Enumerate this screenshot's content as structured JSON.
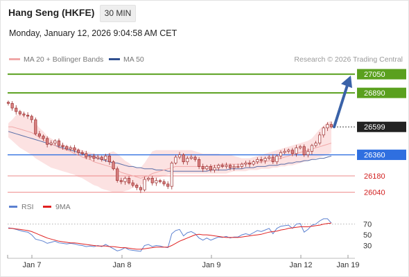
{
  "header": {
    "title": "Hang Seng (HKFE)",
    "timeframe": "30 MIN",
    "datetime": "Monday, January 12, 2026 9:04:58 AM CET"
  },
  "legend": {
    "ma20_label": "MA 20 + Bollinger Bands",
    "ma50_label": "MA 50",
    "credit": "Research © 2026 Trading Central"
  },
  "indicator_legend": {
    "rsi_label": "RSI",
    "ma9_label": "9MA"
  },
  "colors": {
    "candle": "#d98484",
    "candle_dark": "#9a2a2a",
    "bollinger_band": "#fbd8d8",
    "ma20": "#f0a8a8",
    "ma50": "#5a6ea8",
    "target_green": "#5aa01e",
    "pivot_blue": "#2f6fe0",
    "support_red": "#ee8888",
    "support_text": "#d22020",
    "current_label_bg": "#222222",
    "arrow": "#3a62a8",
    "rsi_line": "#5b80d0",
    "rsi_ma_line": "#e02020"
  },
  "chart_data": [
    {
      "type": "candlestick",
      "title": "Hang Seng (HKFE)",
      "x_ticks": [
        "Jan 7",
        "Jan 8",
        "Jan 9",
        "Jan 12",
        "Jan 19"
      ],
      "ylim": [
        25990,
        27110
      ],
      "levels": [
        {
          "value": 27050,
          "label": "27050",
          "kind": "target",
          "color": "#5aa01e"
        },
        {
          "value": 26890,
          "label": "26890",
          "kind": "target",
          "color": "#5aa01e"
        },
        {
          "value": 26599,
          "label": "26599",
          "kind": "current",
          "color": "#222222"
        },
        {
          "value": 26360,
          "label": "26360",
          "kind": "pivot",
          "color": "#2f6fe0"
        },
        {
          "value": 26180,
          "label": "26180",
          "kind": "support",
          "color": "#d22020"
        },
        {
          "value": 26040,
          "label": "26040",
          "kind": "support",
          "color": "#d22020"
        }
      ],
      "forecast_arrow": {
        "from": 26599,
        "to": 27050
      },
      "close": [
        26800,
        26760,
        26730,
        26710,
        26700,
        26690,
        26660,
        26540,
        26520,
        26500,
        26450,
        26460,
        26480,
        26440,
        26430,
        26410,
        26420,
        26400,
        26380,
        26370,
        26340,
        26350,
        26330,
        26340,
        26320,
        26350,
        26300,
        26240,
        26140,
        26130,
        26160,
        26120,
        26100,
        26080,
        26060,
        26150,
        26160,
        26120,
        26140,
        26130,
        26110,
        26090,
        26290,
        26340,
        26360,
        26300,
        26330,
        26340,
        26320,
        26260,
        26240,
        26260,
        26230,
        26250,
        26270,
        26260,
        26270,
        26250,
        26260,
        26260,
        26280,
        26290,
        26280,
        26300,
        26320,
        26310,
        26330,
        26340,
        26300,
        26350,
        26380,
        26390,
        26400,
        26370,
        26420,
        26430,
        26360,
        26390,
        26440,
        26460,
        26530,
        26590,
        26620,
        26599
      ],
      "bollinger_upper": [
        26630,
        26660,
        26700,
        26710,
        26700,
        26680,
        26650,
        26630,
        26590,
        26560,
        26520,
        26500,
        26480,
        26460,
        26450,
        26440,
        26430,
        26420,
        26410,
        26400,
        26390,
        26380,
        26370,
        26360,
        26350,
        26360,
        26380,
        26390,
        26370,
        26340,
        26310,
        26290,
        26260,
        26250,
        26250,
        26290,
        26340,
        26390,
        26400,
        26400,
        26400,
        26400,
        26400,
        26400,
        26400,
        26400,
        26400,
        26400,
        26390,
        26380,
        26370,
        26370,
        26370,
        26370,
        26370,
        26360,
        26360,
        26360,
        26350,
        26340,
        26330,
        26330,
        26330,
        26340,
        26350,
        26360,
        26370,
        26380,
        26390,
        26400,
        26410,
        26420,
        26430,
        26440,
        26450,
        26460,
        26470,
        26480,
        26500,
        26540,
        26580,
        26610,
        26640,
        26650
      ],
      "ma20": [
        26600,
        26600,
        26590,
        26580,
        26570,
        26560,
        26550,
        26530,
        26510,
        26490,
        26470,
        26450,
        26440,
        26420,
        26410,
        26400,
        26390,
        26370,
        26360,
        26340,
        26330,
        26320,
        26300,
        26290,
        26280,
        26270,
        26260,
        26250,
        26230,
        26210,
        26200,
        26190,
        26180,
        26170,
        26160,
        26170,
        26180,
        26200,
        26210,
        26220,
        26230,
        26240,
        26250,
        26260,
        26260,
        26260,
        26260,
        26260,
        26260,
        26260,
        26260,
        26260,
        26260,
        26270,
        26270,
        26280,
        26280,
        26280,
        26280,
        26280,
        26280,
        26290,
        26290,
        26290,
        26290,
        26300,
        26300,
        26310,
        26310,
        26320,
        26330,
        26340,
        26350,
        26360,
        26370,
        26380,
        26390,
        26400,
        26410,
        26420,
        26430,
        26440,
        26450,
        26460
      ],
      "bollinger_lower": [
        26510,
        26480,
        26450,
        26420,
        26400,
        26380,
        26360,
        26330,
        26310,
        26290,
        26270,
        26250,
        26240,
        26230,
        26220,
        26210,
        26200,
        26190,
        26170,
        26160,
        26140,
        26120,
        26100,
        26090,
        26070,
        26060,
        26050,
        26040,
        26040,
        26040,
        26050,
        26060,
        26080,
        26090,
        26100,
        26120,
        26140,
        26150,
        26160,
        26170,
        26180,
        26190,
        26200,
        26200,
        26200,
        26200,
        26200,
        26200,
        26200,
        26200,
        26200,
        26200,
        26200,
        26200,
        26200,
        26200,
        26200,
        26210,
        26220,
        26220,
        26220,
        26220,
        26230,
        26230,
        26230,
        26240,
        26240,
        26240,
        26250,
        26250,
        26260,
        26260,
        26270,
        26270,
        26280,
        26290,
        26300,
        26310,
        26320,
        26330,
        26340,
        26350,
        26360,
        26380
      ],
      "ma50": [
        26560,
        26550,
        26540,
        26530,
        26520,
        26510,
        26500,
        26490,
        26480,
        26470,
        26460,
        26450,
        26440,
        26430,
        26420,
        26410,
        26400,
        26390,
        26380,
        26370,
        26360,
        26350,
        26340,
        26330,
        26320,
        26310,
        26300,
        26290,
        26290,
        26280,
        26270,
        26260,
        26260,
        26250,
        26250,
        26240,
        26240,
        26240,
        26230,
        26230,
        26230,
        26220,
        26220,
        26220,
        26220,
        26220,
        26220,
        26220,
        26220,
        26220,
        26220,
        26220,
        26230,
        26230,
        26230,
        26230,
        26230,
        26240,
        26240,
        26240,
        26240,
        26250,
        26250,
        26250,
        26260,
        26260,
        26260,
        26270,
        26270,
        26270,
        26280,
        26280,
        26290,
        26290,
        26300,
        26300,
        26310,
        26310,
        26320,
        26320,
        26330,
        26330,
        26340,
        26350
      ]
    },
    {
      "type": "line",
      "ylim": [
        10,
        85
      ],
      "y_ticks": [
        70,
        50,
        30
      ],
      "series": [
        {
          "name": "RSI",
          "color": "#5b80d0",
          "values": [
            63,
            62,
            60,
            58,
            56,
            55,
            50,
            42,
            40,
            38,
            34,
            36,
            38,
            35,
            34,
            33,
            34,
            33,
            31,
            30,
            28,
            29,
            28,
            30,
            28,
            32,
            28,
            24,
            20,
            22,
            26,
            22,
            21,
            20,
            19,
            30,
            32,
            28,
            30,
            29,
            27,
            26,
            52,
            58,
            60,
            48,
            54,
            56,
            52,
            44,
            40,
            44,
            40,
            43,
            46,
            45,
            47,
            44,
            46,
            46,
            50,
            52,
            50,
            54,
            58,
            56,
            59,
            62,
            52,
            62,
            66,
            67,
            68,
            62,
            70,
            71,
            55,
            60,
            68,
            70,
            76,
            80,
            80,
            72
          ]
        },
        {
          "name": "9MA",
          "color": "#e02020",
          "values": [
            62,
            62,
            61,
            60,
            59,
            58,
            56,
            53,
            50,
            47,
            44,
            42,
            40,
            38,
            37,
            36,
            35,
            35,
            34,
            33,
            32,
            31,
            30,
            29,
            29,
            29,
            28,
            28,
            27,
            26,
            26,
            25,
            24,
            23,
            23,
            24,
            25,
            26,
            27,
            27,
            27,
            27,
            30,
            34,
            38,
            41,
            44,
            47,
            50,
            51,
            50,
            50,
            49,
            48,
            47,
            46,
            45,
            45,
            45,
            45,
            46,
            47,
            48,
            49,
            50,
            51,
            53,
            55,
            56,
            57,
            59,
            60,
            62,
            63,
            64,
            65,
            65,
            65,
            66,
            67,
            68,
            70,
            71,
            72
          ]
        }
      ]
    }
  ]
}
